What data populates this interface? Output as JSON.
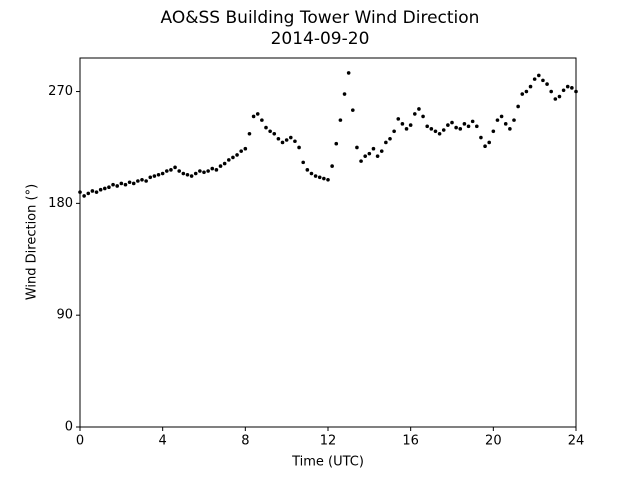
{
  "chart_data": {
    "type": "scatter",
    "title": "AO&SS Building Tower Wind Direction",
    "subtitle": "2014-09-20",
    "xlabel": "Time (UTC)",
    "ylabel": "Wind Direction (°)",
    "color": "#000000",
    "xlim": [
      0,
      24
    ],
    "ylim": [
      0,
      297
    ],
    "xticks": [
      0,
      4,
      8,
      12,
      16,
      20,
      24
    ],
    "yticks": [
      0,
      90,
      180,
      270
    ],
    "x": [
      0,
      0.2,
      0.4,
      0.6,
      0.8,
      1,
      1.2,
      1.4,
      1.6,
      1.8,
      2,
      2.2,
      2.4,
      2.6,
      2.8,
      3,
      3.2,
      3.4,
      3.6,
      3.8,
      4,
      4.2,
      4.4,
      4.6,
      4.8,
      5,
      5.2,
      5.4,
      5.6,
      5.8,
      6,
      6.2,
      6.4,
      6.6,
      6.8,
      7,
      7.2,
      7.4,
      7.6,
      7.8,
      8,
      8.2,
      8.4,
      8.6,
      8.8,
      9,
      9.2,
      9.4,
      9.6,
      9.8,
      10,
      10.2,
      10.4,
      10.6,
      10.8,
      11,
      11.2,
      11.4,
      11.6,
      11.8,
      12,
      12.2,
      12.4,
      12.6,
      12.8,
      13,
      13.2,
      13.4,
      13.6,
      13.8,
      14,
      14.2,
      14.4,
      14.6,
      14.8,
      15,
      15.2,
      15.4,
      15.6,
      15.8,
      16,
      16.2,
      16.4,
      16.6,
      16.8,
      17,
      17.2,
      17.4,
      17.6,
      17.8,
      18,
      18.2,
      18.4,
      18.6,
      18.8,
      19,
      19.2,
      19.4,
      19.6,
      19.8,
      20,
      20.2,
      20.4,
      20.6,
      20.8,
      21,
      21.2,
      21.4,
      21.6,
      21.8,
      22,
      22.2,
      22.4,
      22.6,
      22.8,
      23,
      23.2,
      23.4,
      23.6,
      23.8,
      24
    ],
    "values": [
      189,
      186,
      188,
      190,
      189,
      191,
      192,
      193,
      195,
      194,
      196,
      195,
      197,
      196,
      198,
      199,
      198,
      201,
      202,
      203,
      204,
      206,
      207,
      209,
      206,
      204,
      203,
      202,
      204,
      206,
      205,
      206,
      208,
      207,
      210,
      212,
      215,
      217,
      219,
      222,
      224,
      236,
      250,
      252,
      247,
      241,
      238,
      236,
      232,
      229,
      231,
      233,
      230,
      225,
      213,
      207,
      204,
      202,
      201,
      200,
      199,
      210,
      228,
      247,
      268,
      285,
      255,
      225,
      214,
      218,
      220,
      224,
      218,
      222,
      229,
      232,
      238,
      248,
      244,
      240,
      243,
      252,
      256,
      250,
      242,
      240,
      238,
      236,
      239,
      243,
      245,
      241,
      240,
      244,
      242,
      246,
      242,
      233,
      226,
      229,
      238,
      247,
      250,
      244,
      240,
      247,
      258,
      268,
      270,
      274,
      280,
      283,
      279,
      276,
      270,
      264,
      266,
      271,
      274,
      273,
      270
    ]
  }
}
